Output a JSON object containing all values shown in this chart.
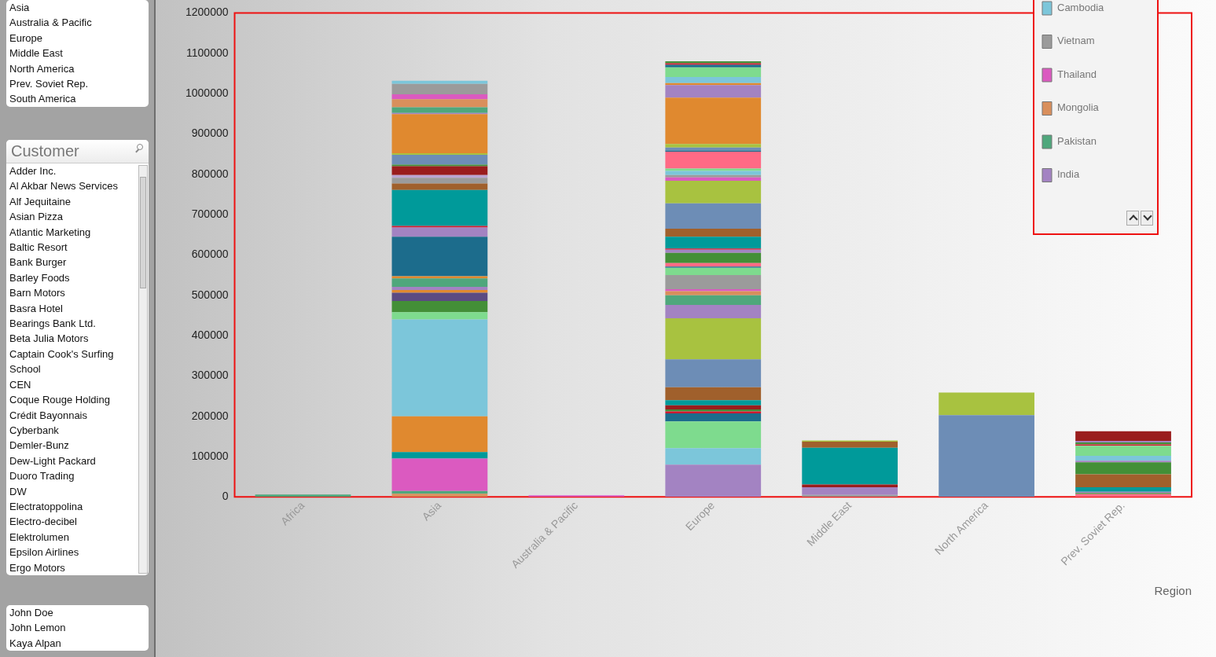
{
  "chart_data": [
    {
      "type": "other",
      "annotations": [
        "Asia",
        "Australia & Pacific",
        "Europe",
        "Middle East",
        "North America",
        "Prev. Soviet Rep.",
        "South America"
      ]
    },
    {
      "type": "other",
      "title": "Customer",
      "annotations": [
        "Adder Inc.",
        "Al Akbar News Services",
        "Alf Jequitaine",
        "Asian Pizza",
        "Atlantic Marketing",
        "Baltic Resort",
        "Bank Burger",
        "Barley Foods",
        "Barn Motors",
        "Basra Hotel",
        "Bearings Bank Ltd.",
        "Beta Julia Motors",
        "Captain Cook's Surfing School",
        "CEN",
        "Coque Rouge Holding",
        "Crédit Bayonnais",
        "Cyberbank",
        "Demler-Bunz",
        "Dew-Light Packard",
        "Duoro Trading",
        "DW",
        "Electratoppolina",
        "Electro-decibel",
        "Elektrolumen",
        "Epsilon Airlines",
        "Ergo Motors"
      ]
    },
    {
      "type": "other",
      "annotations": [
        "John Doe",
        "John Lemon",
        "Kaya Alpan"
      ]
    },
    {
      "type": "bar",
      "stacked": true,
      "xlabel": "Region",
      "legend": "top right",
      "categories": [
        "Africa",
        "Asia",
        "Australia & Pacific",
        "Europe",
        "Middle East",
        "North America",
        "Prev. Soviet Rep."
      ],
      "ylim": [
        0,
        1200000
      ],
      "yticks": [
        0,
        100000,
        200000,
        300000,
        400000,
        500000,
        600000,
        700000,
        800000,
        900000,
        1000000,
        1100000,
        1200000
      ],
      "series": [
        {
          "color": "#4fa77c",
          "values": [
            6000,
            null,
            null,
            null,
            null,
            null,
            null
          ]
        },
        {
          "color": "#d98f5c",
          "values": [
            null,
            8000,
            null,
            null,
            null,
            null,
            null
          ]
        },
        {
          "color": "#4fa77c",
          "values": [
            null,
            7000,
            null,
            null,
            null,
            null,
            null
          ]
        },
        {
          "color": "#db5ac0",
          "values": [
            null,
            80000,
            null,
            null,
            null,
            null,
            null
          ]
        },
        {
          "color": "#009a9a",
          "values": [
            null,
            16000,
            null,
            null,
            null,
            null,
            null
          ]
        },
        {
          "color": "#e0892f",
          "values": [
            null,
            89000,
            null,
            null,
            null,
            null,
            null
          ]
        },
        {
          "color": "#7cc6da",
          "values": [
            null,
            240000,
            null,
            null,
            null,
            null,
            null
          ]
        },
        {
          "color": "#7edb8e",
          "values": [
            null,
            18000,
            null,
            null,
            null,
            null,
            null
          ]
        },
        {
          "color": "#438f37",
          "values": [
            null,
            28000,
            null,
            null,
            null,
            null,
            null
          ]
        },
        {
          "color": "#5b4b82",
          "values": [
            null,
            20000,
            null,
            null,
            null,
            null,
            null
          ]
        },
        {
          "color": "#e0892f",
          "values": [
            null,
            7000,
            null,
            null,
            null,
            null,
            null
          ]
        },
        {
          "color": "#a383c2",
          "values": [
            null,
            8000,
            null,
            null,
            null,
            null,
            null
          ]
        },
        {
          "color": "#4fa77c",
          "values": [
            null,
            21000,
            null,
            null,
            null,
            null,
            null
          ]
        },
        {
          "color": "#e0892f",
          "values": [
            null,
            5000,
            null,
            null,
            null,
            null,
            null
          ]
        },
        {
          "color": "#1c6c8c",
          "values": [
            null,
            98000,
            null,
            null,
            null,
            null,
            null
          ]
        },
        {
          "color": "#a383c2",
          "values": [
            null,
            23000,
            null,
            null,
            null,
            null,
            null
          ]
        },
        {
          "color": "#cc1a30",
          "values": [
            null,
            4000,
            null,
            null,
            null,
            null,
            null
          ]
        },
        {
          "color": "#009a9a",
          "values": [
            null,
            89000,
            null,
            null,
            null,
            null,
            null
          ]
        },
        {
          "color": "#a0602c",
          "values": [
            null,
            16000,
            null,
            null,
            null,
            null,
            null
          ]
        },
        {
          "color": "#9b9b9b",
          "values": [
            null,
            14000,
            null,
            null,
            null,
            null,
            null
          ]
        },
        {
          "color": "#bba6d2",
          "values": [
            null,
            7000,
            null,
            null,
            null,
            null,
            null
          ]
        },
        {
          "color": "#9a1d1d",
          "values": [
            null,
            22000,
            null,
            null,
            null,
            null,
            null
          ]
        },
        {
          "color": "#438f37",
          "values": [
            null,
            4000,
            null,
            null,
            null,
            null,
            null
          ]
        },
        {
          "color": "#6d8db6",
          "values": [
            null,
            24000,
            null,
            null,
            null,
            null,
            null
          ]
        },
        {
          "color": "#a8c240",
          "values": [
            null,
            4000,
            null,
            null,
            null,
            null,
            null
          ]
        },
        {
          "color": "#e0892f",
          "values": [
            null,
            97000,
            null,
            null,
            null,
            null,
            null
          ]
        },
        {
          "name": "India",
          "color": "#a383c2",
          "values": [
            null,
            3000,
            null,
            null,
            null,
            null,
            null
          ]
        },
        {
          "name": "Pakistan",
          "color": "#4fa77c",
          "values": [
            null,
            14000,
            null,
            null,
            null,
            null,
            null
          ]
        },
        {
          "name": "Mongolia",
          "color": "#d98f5c",
          "values": [
            null,
            20000,
            null,
            null,
            null,
            null,
            null
          ]
        },
        {
          "name": "Thailand",
          "color": "#db5ac0",
          "values": [
            null,
            12000,
            null,
            null,
            null,
            null,
            null
          ]
        },
        {
          "name": "Vietnam",
          "color": "#9b9b9b",
          "values": [
            null,
            26000,
            null,
            null,
            null,
            null,
            null
          ]
        },
        {
          "name": "Cambodia",
          "color": "#7cc6da",
          "values": [
            null,
            8000,
            null,
            null,
            null,
            null,
            null
          ]
        },
        {
          "color": "#db5ac0",
          "values": [
            null,
            null,
            4000,
            null,
            null,
            null,
            null
          ]
        },
        {
          "color": "#a383c2",
          "values": [
            null,
            null,
            null,
            80000,
            null,
            null,
            null
          ]
        },
        {
          "color": "#7cc6da",
          "values": [
            null,
            null,
            null,
            41000,
            null,
            null,
            null
          ]
        },
        {
          "color": "#7edb8e",
          "values": [
            null,
            null,
            null,
            66000,
            null,
            null,
            null
          ]
        },
        {
          "color": "#1c6c8c",
          "values": [
            null,
            null,
            null,
            20000,
            null,
            null,
            null
          ]
        },
        {
          "color": "#cc1a30",
          "values": [
            null,
            null,
            null,
            5000,
            null,
            null,
            null
          ]
        },
        {
          "color": "#438f37",
          "values": [
            null,
            null,
            null,
            5000,
            null,
            null,
            null
          ]
        },
        {
          "color": "#9a1d1d",
          "values": [
            null,
            null,
            null,
            10000,
            null,
            null,
            null
          ]
        },
        {
          "color": "#009a9a",
          "values": [
            null,
            null,
            null,
            13000,
            null,
            null,
            null
          ]
        },
        {
          "color": "#a0602c",
          "values": [
            null,
            null,
            null,
            32000,
            null,
            null,
            null
          ]
        },
        {
          "color": "#6d8db6",
          "values": [
            null,
            null,
            null,
            69000,
            null,
            null,
            null
          ]
        },
        {
          "color": "#a8c240",
          "values": [
            null,
            null,
            null,
            102000,
            null,
            null,
            null
          ]
        },
        {
          "color": "#a383c2",
          "values": [
            null,
            null,
            null,
            33000,
            null,
            null,
            null
          ]
        },
        {
          "color": "#4fa77c",
          "values": [
            null,
            null,
            null,
            24000,
            null,
            null,
            null
          ]
        },
        {
          "color": "#d98f5c",
          "values": [
            null,
            null,
            null,
            10000,
            null,
            null,
            null
          ]
        },
        {
          "color": "#db5ac0",
          "values": [
            null,
            null,
            null,
            5000,
            null,
            null,
            null
          ]
        },
        {
          "color": "#9b9b9b",
          "values": [
            null,
            null,
            null,
            35000,
            null,
            null,
            null
          ]
        },
        {
          "color": "#7edb8e",
          "values": [
            null,
            null,
            null,
            18000,
            null,
            null,
            null
          ]
        },
        {
          "color": "#1c6c8c",
          "values": [
            null,
            null,
            null,
            3000,
            null,
            null,
            null
          ]
        },
        {
          "color": "#ff6a85",
          "values": [
            null,
            null,
            null,
            9000,
            null,
            null,
            null
          ]
        },
        {
          "color": "#438f37",
          "values": [
            null,
            null,
            null,
            25000,
            null,
            null,
            null
          ]
        },
        {
          "color": "#a383c2",
          "values": [
            null,
            null,
            null,
            8000,
            null,
            null,
            null
          ]
        },
        {
          "color": "#cc1a30",
          "values": [
            null,
            null,
            null,
            3000,
            null,
            null,
            null
          ]
        },
        {
          "color": "#009a9a",
          "values": [
            null,
            null,
            null,
            29000,
            null,
            null,
            null
          ]
        },
        {
          "color": "#a0602c",
          "values": [
            null,
            null,
            null,
            20000,
            null,
            null,
            null
          ]
        },
        {
          "color": "#6d8db6",
          "values": [
            null,
            null,
            null,
            63000,
            null,
            null,
            null
          ]
        },
        {
          "color": "#a8c240",
          "values": [
            null,
            null,
            null,
            56000,
            null,
            null,
            null
          ]
        },
        {
          "color": "#db5ac0",
          "values": [
            null,
            null,
            null,
            8000,
            null,
            null,
            null
          ]
        },
        {
          "color": "#9b9b9b",
          "values": [
            null,
            null,
            null,
            6000,
            null,
            null,
            null
          ]
        },
        {
          "color": "#7cc6da",
          "values": [
            null,
            null,
            null,
            10000,
            null,
            null,
            null
          ]
        },
        {
          "color": "#7edb8e",
          "values": [
            null,
            null,
            null,
            6000,
            null,
            null,
            null
          ]
        },
        {
          "color": "#ff6a85",
          "values": [
            null,
            null,
            null,
            42000,
            null,
            null,
            null
          ]
        },
        {
          "color": "#1c6c8c",
          "values": [
            null,
            null,
            null,
            3000,
            null,
            null,
            null
          ]
        },
        {
          "color": "#6d8db6",
          "values": [
            null,
            null,
            null,
            7000,
            null,
            null,
            null
          ]
        },
        {
          "color": "#a8c240",
          "values": [
            null,
            null,
            null,
            9000,
            null,
            null,
            null
          ]
        },
        {
          "color": "#e0892f",
          "values": [
            null,
            null,
            null,
            115000,
            null,
            null,
            null
          ]
        },
        {
          "color": "#a383c2",
          "values": [
            null,
            null,
            null,
            31000,
            null,
            null,
            null
          ]
        },
        {
          "color": "#e0892f",
          "values": [
            null,
            null,
            null,
            5000,
            null,
            null,
            null
          ]
        },
        {
          "color": "#7cc6da",
          "values": [
            null,
            null,
            null,
            15000,
            null,
            null,
            null
          ]
        },
        {
          "color": "#7edb8e",
          "values": [
            null,
            null,
            null,
            24000,
            null,
            null,
            null
          ]
        },
        {
          "color": "#1c6c8c",
          "values": [
            null,
            null,
            null,
            6000,
            null,
            null,
            null
          ]
        },
        {
          "color": "#cc1a30",
          "values": [
            null,
            null,
            null,
            4000,
            null,
            null,
            null
          ]
        },
        {
          "color": "#438f37",
          "values": [
            null,
            null,
            null,
            5000,
            null,
            null,
            null
          ]
        },
        {
          "color": "#9b9b9b",
          "values": [
            null,
            null,
            null,
            null,
            5000,
            null,
            null
          ]
        },
        {
          "color": "#a383c2",
          "values": [
            null,
            null,
            null,
            null,
            19000,
            null,
            null
          ]
        },
        {
          "color": "#9a1d1d",
          "values": [
            null,
            null,
            null,
            null,
            7000,
            null,
            null
          ]
        },
        {
          "color": "#009a9a",
          "values": [
            null,
            null,
            null,
            null,
            91000,
            null,
            null
          ]
        },
        {
          "color": "#a0602c",
          "values": [
            null,
            null,
            null,
            null,
            15000,
            null,
            null
          ]
        },
        {
          "color": "#a8c240",
          "values": [
            null,
            null,
            null,
            null,
            3000,
            null,
            null
          ]
        },
        {
          "color": "#6d8db6",
          "values": [
            null,
            null,
            null,
            null,
            null,
            203000,
            null
          ]
        },
        {
          "color": "#a8c240",
          "values": [
            null,
            null,
            null,
            null,
            null,
            56000,
            null
          ]
        },
        {
          "color": "#ff6a85",
          "values": [
            null,
            null,
            null,
            null,
            null,
            null,
            7000
          ]
        },
        {
          "color": "#438f37",
          "values": [
            null,
            null,
            null,
            null,
            null,
            null,
            3000
          ]
        },
        {
          "color": "#a383c2",
          "values": [
            null,
            null,
            null,
            null,
            null,
            null,
            3000
          ]
        },
        {
          "color": "#009a9a",
          "values": [
            null,
            null,
            null,
            null,
            null,
            null,
            11000
          ]
        },
        {
          "color": "#a0602c",
          "values": [
            null,
            null,
            null,
            null,
            null,
            null,
            32000
          ]
        },
        {
          "color": "#438f37",
          "values": [
            null,
            null,
            null,
            null,
            null,
            null,
            30000
          ]
        },
        {
          "color": "#a383c2",
          "values": [
            null,
            null,
            null,
            null,
            null,
            null,
            4000
          ]
        },
        {
          "color": "#7cc6da",
          "values": [
            null,
            null,
            null,
            null,
            null,
            null,
            12000
          ]
        },
        {
          "color": "#7edb8e",
          "values": [
            null,
            null,
            null,
            null,
            null,
            null,
            25000
          ]
        },
        {
          "color": "#cc1a30",
          "values": [
            null,
            null,
            null,
            null,
            null,
            null,
            3000
          ]
        },
        {
          "color": "#438f37",
          "values": [
            null,
            null,
            null,
            null,
            null,
            null,
            5000
          ]
        },
        {
          "color": "#a383c2",
          "values": [
            null,
            null,
            null,
            null,
            null,
            null,
            4000
          ]
        },
        {
          "color": "#9a1d1d",
          "values": [
            null,
            null,
            null,
            null,
            null,
            null,
            24000
          ]
        }
      ]
    }
  ]
}
